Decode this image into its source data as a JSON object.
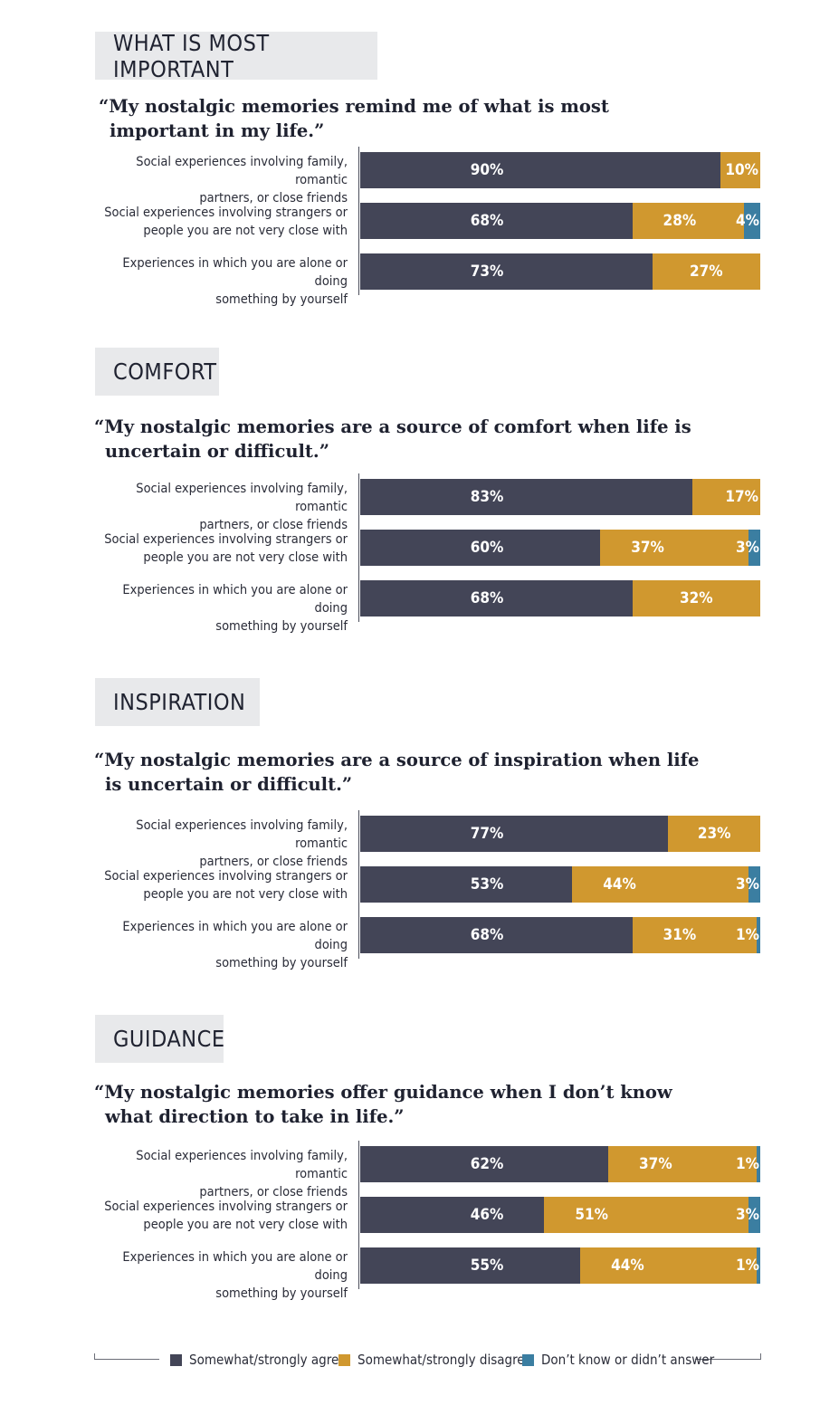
{
  "chart_data": [
    {
      "type": "bar",
      "orientation": "horizontal",
      "stacked": true,
      "title": "WHAT IS MOST IMPORTANT",
      "subtitle": "“My nostalgic memories remind me of what is most important in my life.”",
      "categories": [
        "Social experiences involving family, romantic partners, or close friends",
        "Social experiences involving strangers or people you are not very close with",
        "Experiences in which you are alone or doing something by yourself"
      ],
      "series": [
        {
          "name": "Somewhat/strongly agree",
          "values": [
            90,
            68,
            73
          ],
          "labels": [
            "90%",
            "68%",
            "73%"
          ]
        },
        {
          "name": "Somewhat/strongly disagree",
          "values": [
            10,
            28,
            27
          ],
          "labels": [
            "10%",
            "28%",
            "27%"
          ]
        },
        {
          "name": "Don’t know or didn’t answer",
          "values": [
            0,
            4,
            0
          ],
          "labels": [
            "",
            "4%",
            ""
          ]
        }
      ],
      "xlim": [
        0,
        100
      ]
    },
    {
      "type": "bar",
      "orientation": "horizontal",
      "stacked": true,
      "title": "COMFORT",
      "subtitle": "“My nostalgic memories are a source of comfort when life is uncertain or difficult.”",
      "categories": [
        "Social experiences involving family, romantic partners, or close friends",
        "Social experiences involving strangers or people you are not very close with",
        "Experiences in which you are alone or doing something by yourself"
      ],
      "series": [
        {
          "name": "Somewhat/strongly agree",
          "values": [
            83,
            60,
            68
          ],
          "labels": [
            "83%",
            "60%",
            "68%"
          ]
        },
        {
          "name": "Somewhat/strongly disagree",
          "values": [
            17,
            37,
            32
          ],
          "labels": [
            "17%",
            "37%",
            "32%"
          ]
        },
        {
          "name": "Don’t know or didn’t answer",
          "values": [
            0,
            3,
            0
          ],
          "labels": [
            "",
            "3%",
            ""
          ]
        }
      ],
      "xlim": [
        0,
        100
      ]
    },
    {
      "type": "bar",
      "orientation": "horizontal",
      "stacked": true,
      "title": "INSPIRATION",
      "subtitle": "“My nostalgic memories are a source of inspiration when life is uncertain or difficult.”",
      "categories": [
        "Social experiences involving family, romantic partners, or close friends",
        "Social experiences involving strangers or people you are not very close with",
        "Experiences in which you are alone or doing something by yourself"
      ],
      "series": [
        {
          "name": "Somewhat/strongly agree",
          "values": [
            77,
            53,
            68
          ],
          "labels": [
            "77%",
            "53%",
            "68%"
          ]
        },
        {
          "name": "Somewhat/strongly disagree",
          "values": [
            23,
            44,
            31
          ],
          "labels": [
            "23%",
            "44%",
            "31%"
          ]
        },
        {
          "name": "Don’t know or didn’t answer",
          "values": [
            0,
            3,
            1
          ],
          "labels": [
            "",
            "3%",
            "1%"
          ]
        }
      ],
      "xlim": [
        0,
        100
      ]
    },
    {
      "type": "bar",
      "orientation": "horizontal",
      "stacked": true,
      "title": "GUIDANCE",
      "subtitle": "“My nostalgic memories offer guidance when I don’t know what direction to take in life.”",
      "categories": [
        "Social experiences involving family, romantic partners, or close friends",
        "Social experiences involving strangers or people you are not very close with",
        "Experiences in which you are alone or doing something by yourself"
      ],
      "series": [
        {
          "name": "Somewhat/strongly agree",
          "values": [
            62,
            46,
            55
          ],
          "labels": [
            "62%",
            "46%",
            "55%"
          ]
        },
        {
          "name": "Somewhat/strongly disagree",
          "values": [
            37,
            51,
            44
          ],
          "labels": [
            "37%",
            "51%",
            "44%"
          ]
        },
        {
          "name": "Don’t know or didn’t answer",
          "values": [
            1,
            3,
            1
          ],
          "labels": [
            "1%",
            "3%",
            "1%"
          ]
        }
      ],
      "xlim": [
        0,
        100
      ]
    }
  ],
  "legend": {
    "placement": "bottom",
    "items": [
      {
        "label": "Somewhat/strongly agree",
        "color": "#434557"
      },
      {
        "label": "Somewhat/strongly disagree",
        "color": "#d0982f"
      },
      {
        "label": "Don’t know or didn’t answer",
        "color": "#3b7ea1"
      }
    ]
  }
}
